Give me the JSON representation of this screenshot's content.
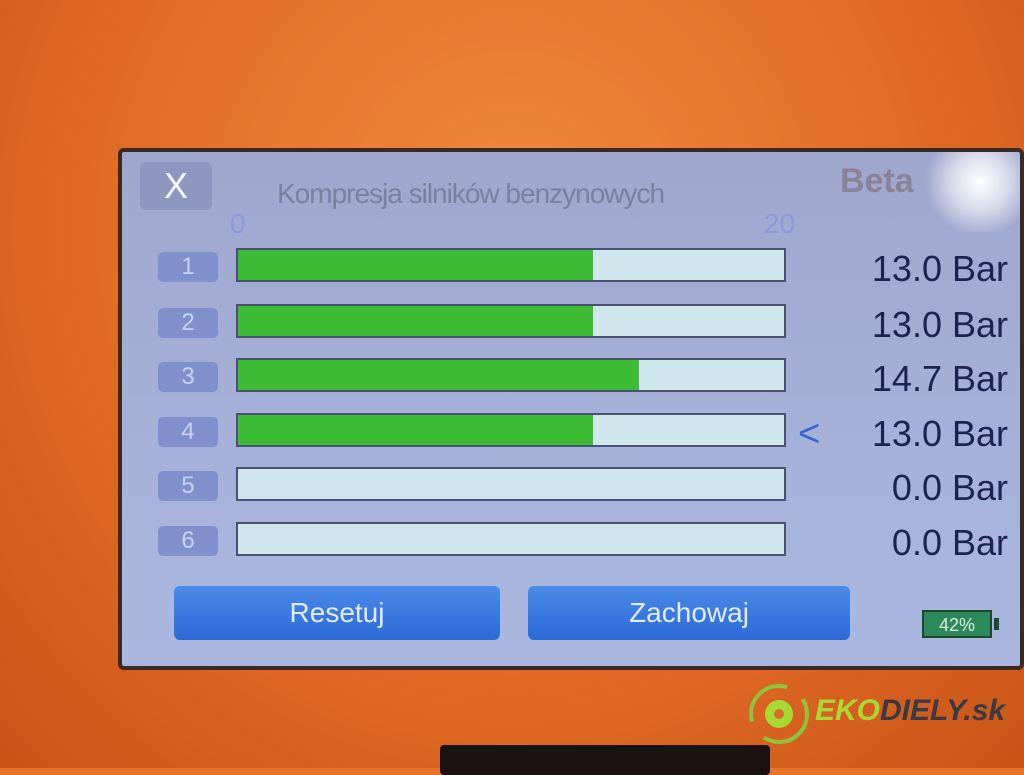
{
  "header": {
    "close_label": "X",
    "title": "Kompresja silników benzynowych",
    "logo": "Beta"
  },
  "scale": {
    "min": "0",
    "max": "20",
    "unit_max": 20
  },
  "cylinders": [
    {
      "label": "1",
      "value": 13.0,
      "display": "13.0 Bar",
      "selected": false
    },
    {
      "label": "2",
      "value": 13.0,
      "display": "13.0 Bar",
      "selected": false
    },
    {
      "label": "3",
      "value": 14.7,
      "display": "14.7 Bar",
      "selected": false
    },
    {
      "label": "4",
      "value": 13.0,
      "display": "13.0 Bar",
      "selected": true
    },
    {
      "label": "5",
      "value": 0.0,
      "display": "0.0 Bar",
      "selected": false
    },
    {
      "label": "6",
      "value": 0.0,
      "display": "0.0 Bar",
      "selected": false
    }
  ],
  "selected_marker": "<",
  "buttons": {
    "reset": "Resetuj",
    "save": "Zachowaj"
  },
  "battery": {
    "label": "42%",
    "level": 0.42
  },
  "colors": {
    "bar_fill": "#3cbc34",
    "bar_empty": "#cfe6ec",
    "button": "#2c6ad8",
    "casing": "#e8742c"
  },
  "watermark": {
    "part1": "EKO",
    "part2": "DIELY.sk"
  }
}
